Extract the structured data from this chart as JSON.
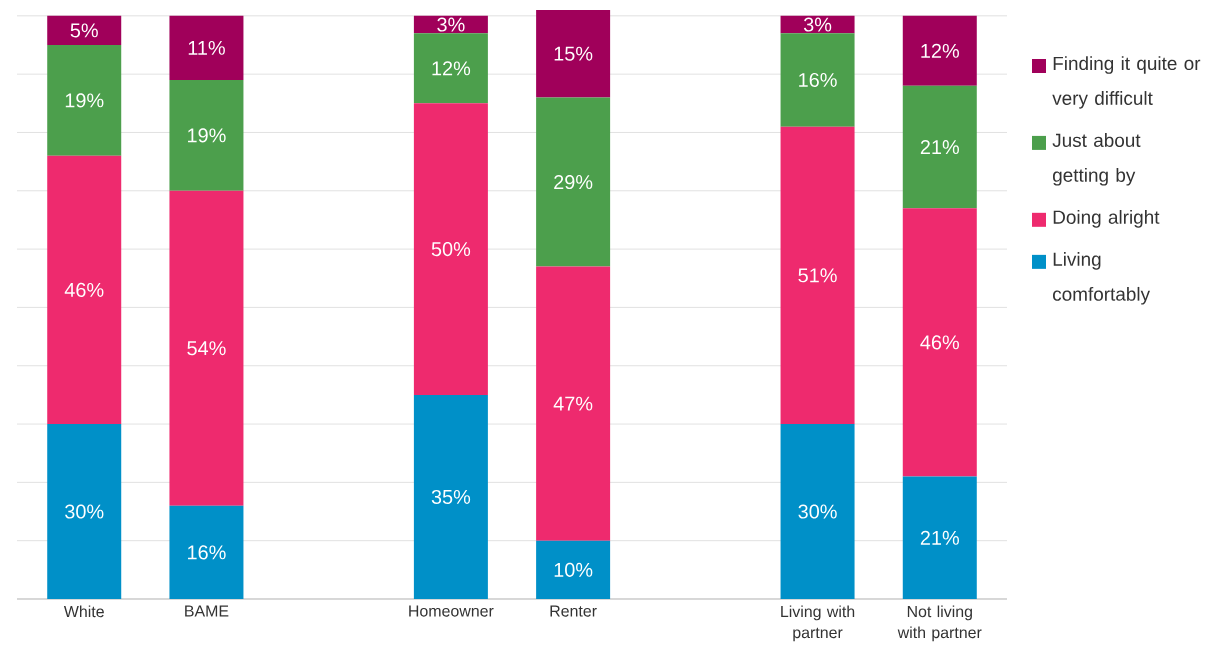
{
  "chart_data": {
    "type": "bar",
    "stacked": true,
    "categories": [
      "White",
      "BAME",
      null,
      "Homeowner",
      "Renter",
      null,
      "Living with partner",
      "Not living with partner"
    ],
    "series": [
      {
        "name": "Living comfortably",
        "color": "#0090c8",
        "values": [
          30,
          16,
          null,
          35,
          10,
          null,
          30,
          21
        ],
        "value_labels": [
          "30%",
          "16%",
          null,
          "35%",
          "10%",
          null,
          "30%",
          "21%"
        ]
      },
      {
        "name": "Doing alright",
        "color": "#ee2a6e",
        "values": [
          46,
          54,
          null,
          50,
          47,
          null,
          51,
          46
        ],
        "value_labels": [
          "46%",
          "54%",
          null,
          "50%",
          "47%",
          null,
          "51%",
          "46%"
        ]
      },
      {
        "name": "Just about getting by",
        "color": "#4c9f4c",
        "values": [
          19,
          19,
          null,
          12,
          29,
          null,
          16,
          21
        ],
        "value_labels": [
          "19%",
          "19%",
          null,
          "12%",
          "29%",
          null,
          "16%",
          "21%"
        ]
      },
      {
        "name": "Finding it quite or very difficult",
        "color": "#a0005a",
        "values": [
          5,
          11,
          null,
          3,
          15,
          null,
          3,
          12
        ],
        "value_labels": [
          "5%",
          "11%",
          null,
          "3%",
          "15%",
          null,
          "3%",
          "12%"
        ]
      }
    ],
    "ylim": [
      0,
      101
    ],
    "yticks": [
      {
        "value": 0,
        "label": null
      },
      {
        "value": 10,
        "label": null
      },
      {
        "value": 20,
        "label": null
      },
      {
        "value": 30,
        "label": null
      },
      {
        "value": 40,
        "label": null
      },
      {
        "value": 50,
        "label": null
      },
      {
        "value": 60,
        "label": null
      },
      {
        "value": 70,
        "label": null
      },
      {
        "value": 80,
        "label": null
      },
      {
        "value": 90,
        "label": null
      },
      {
        "value": 100,
        "label": null
      }
    ],
    "grid": "y",
    "legend": "right",
    "tick_labels": "x"
  }
}
